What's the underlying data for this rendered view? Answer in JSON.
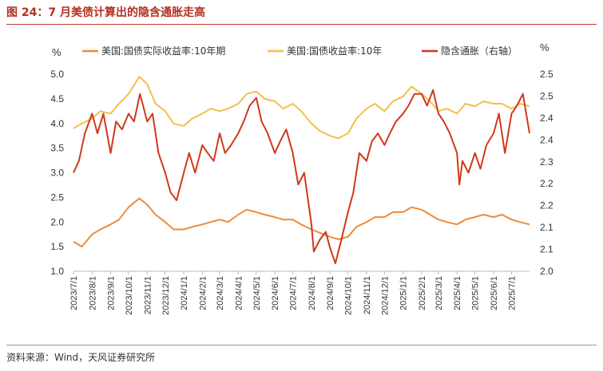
{
  "title": "图 24：7 月美债计算出的隐含通胀走高",
  "source": "资料来源：Wind，天风证券研究所",
  "chart_data": {
    "type": "line",
    "left_unit": "%",
    "right_unit": "%",
    "ylim_left": [
      1.0,
      5.0
    ],
    "yticks_left": [
      "1.0",
      "1.5",
      "2.0",
      "2.5",
      "3.0",
      "3.5",
      "4.0",
      "4.5",
      "5.0"
    ],
    "ylim_right": [
      2.0,
      2.5
    ],
    "yticks_right": [
      "2.0",
      "2.1",
      "2.1",
      "2.2",
      "2.2",
      "2.3",
      "2.4",
      "2.4",
      "2.5",
      "2.5"
    ],
    "x_categories": [
      "2023/7/1",
      "2023/8/1",
      "2023/9/1",
      "2023/10/1",
      "2023/11/1",
      "2023/12/1",
      "2024/1/1",
      "2024/2/1",
      "2024/3/1",
      "2024/4/1",
      "2024/5/1",
      "2024/6/1",
      "2024/7/1",
      "2024/8/1",
      "2024/9/1",
      "2024/10/1",
      "2024/11/1",
      "2024/12/1",
      "2025/1/1",
      "2025/2/1",
      "2025/3/1",
      "2025/4/1",
      "2025/5/1",
      "2025/6/1",
      "2025/7/1"
    ],
    "legend_position": "top",
    "series": [
      {
        "name": "美国:国债实际收益率:10年期",
        "axis": "left",
        "color": "#ed8b3a",
        "x": [
          "2023/7/1",
          "2023/7/15",
          "2023/8/1",
          "2023/8/15",
          "2023/9/1",
          "2023/9/15",
          "2023/10/1",
          "2023/10/19",
          "2023/11/1",
          "2023/11/15",
          "2023/12/1",
          "2023/12/15",
          "2024/1/1",
          "2024/1/15",
          "2024/2/1",
          "2024/2/15",
          "2024/3/1",
          "2024/3/15",
          "2024/4/1",
          "2024/4/15",
          "2024/5/1",
          "2024/5/15",
          "2024/6/1",
          "2024/6/15",
          "2024/7/1",
          "2024/7/15",
          "2024/8/1",
          "2024/8/15",
          "2024/9/1",
          "2024/9/15",
          "2024/10/1",
          "2024/10/15",
          "2024/11/1",
          "2024/11/15",
          "2024/12/1",
          "2024/12/15",
          "2025/1/1",
          "2025/1/15",
          "2025/2/1",
          "2025/2/15",
          "2025/3/1",
          "2025/3/15",
          "2025/4/1",
          "2025/4/15",
          "2025/5/1",
          "2025/5/15",
          "2025/6/1",
          "2025/6/15",
          "2025/7/1",
          "2025/7/15",
          "2025/7/31"
        ],
        "values": [
          1.6,
          1.5,
          1.75,
          1.85,
          1.95,
          2.05,
          2.3,
          2.48,
          2.35,
          2.15,
          2.0,
          1.85,
          1.85,
          1.9,
          1.95,
          2.0,
          2.05,
          2.0,
          2.15,
          2.25,
          2.2,
          2.15,
          2.1,
          2.05,
          2.05,
          1.95,
          1.85,
          1.78,
          1.7,
          1.65,
          1.7,
          1.9,
          2.0,
          2.1,
          2.1,
          2.2,
          2.2,
          2.3,
          2.25,
          2.15,
          2.05,
          2.0,
          1.95,
          2.05,
          2.1,
          2.15,
          2.1,
          2.15,
          2.05,
          2.0,
          1.95
        ]
      },
      {
        "name": "美国:国债收益率:10年",
        "axis": "left",
        "color": "#f3c04a",
        "x": [
          "2023/7/1",
          "2023/7/15",
          "2023/8/1",
          "2023/8/15",
          "2023/9/1",
          "2023/9/15",
          "2023/10/1",
          "2023/10/19",
          "2023/11/1",
          "2023/11/15",
          "2023/12/1",
          "2023/12/15",
          "2024/1/1",
          "2024/1/15",
          "2024/2/1",
          "2024/2/15",
          "2024/3/1",
          "2024/3/15",
          "2024/4/1",
          "2024/4/15",
          "2024/5/1",
          "2024/5/15",
          "2024/6/1",
          "2024/6/15",
          "2024/7/1",
          "2024/7/15",
          "2024/8/1",
          "2024/8/15",
          "2024/9/1",
          "2024/9/15",
          "2024/10/1",
          "2024/10/15",
          "2024/11/1",
          "2024/11/15",
          "2024/12/1",
          "2024/12/15",
          "2025/1/1",
          "2025/1/15",
          "2025/2/1",
          "2025/2/15",
          "2025/3/1",
          "2025/3/15",
          "2025/4/1",
          "2025/4/15",
          "2025/5/1",
          "2025/5/15",
          "2025/6/1",
          "2025/6/15",
          "2025/7/1",
          "2025/7/15",
          "2025/7/31"
        ],
        "values": [
          3.9,
          4.0,
          4.1,
          4.25,
          4.2,
          4.4,
          4.6,
          4.95,
          4.8,
          4.4,
          4.25,
          4.0,
          3.95,
          4.1,
          4.2,
          4.3,
          4.25,
          4.3,
          4.4,
          4.6,
          4.65,
          4.5,
          4.45,
          4.3,
          4.4,
          4.25,
          4.0,
          3.85,
          3.75,
          3.7,
          3.8,
          4.1,
          4.3,
          4.4,
          4.25,
          4.45,
          4.55,
          4.75,
          4.6,
          4.45,
          4.25,
          4.3,
          4.2,
          4.4,
          4.35,
          4.45,
          4.4,
          4.4,
          4.3,
          4.4,
          4.35
        ]
      },
      {
        "name": "隐含通胀（右轴）",
        "axis": "right",
        "color": "#d0391a",
        "x": [
          "2023/7/1",
          "2023/7/10",
          "2023/7/20",
          "2023/8/1",
          "2023/8/10",
          "2023/8/20",
          "2023/9/1",
          "2023/9/10",
          "2023/9/20",
          "2023/10/1",
          "2023/10/10",
          "2023/10/20",
          "2023/11/1",
          "2023/11/10",
          "2023/11/20",
          "2023/12/1",
          "2023/12/10",
          "2023/12/20",
          "2024/1/1",
          "2024/1/10",
          "2024/1/20",
          "2024/2/1",
          "2024/2/10",
          "2024/2/20",
          "2024/3/1",
          "2024/3/10",
          "2024/3/20",
          "2024/4/1",
          "2024/4/10",
          "2024/4/20",
          "2024/5/1",
          "2024/5/10",
          "2024/5/20",
          "2024/6/1",
          "2024/6/10",
          "2024/6/20",
          "2024/7/1",
          "2024/7/10",
          "2024/7/20",
          "2024/8/1",
          "2024/8/5",
          "2024/8/15",
          "2024/8/25",
          "2024/9/1",
          "2024/9/10",
          "2024/9/20",
          "2024/10/1",
          "2024/10/10",
          "2024/10/20",
          "2024/11/1",
          "2024/11/10",
          "2024/11/20",
          "2024/12/1",
          "2024/12/10",
          "2024/12/20",
          "2025/1/1",
          "2025/1/10",
          "2025/1/20",
          "2025/2/1",
          "2025/2/10",
          "2025/2/20",
          "2025/3/1",
          "2025/3/10",
          "2025/3/20",
          "2025/4/1",
          "2025/4/5",
          "2025/4/10",
          "2025/4/20",
          "2025/5/1",
          "2025/5/10",
          "2025/5/20",
          "2025/6/1",
          "2025/6/10",
          "2025/6/20",
          "2025/7/1",
          "2025/7/10",
          "2025/7/20",
          "2025/7/31"
        ],
        "values": [
          2.25,
          2.28,
          2.35,
          2.4,
          2.35,
          2.4,
          2.3,
          2.38,
          2.36,
          2.4,
          2.38,
          2.45,
          2.38,
          2.4,
          2.3,
          2.25,
          2.2,
          2.18,
          2.25,
          2.3,
          2.25,
          2.32,
          2.3,
          2.28,
          2.35,
          2.3,
          2.32,
          2.35,
          2.38,
          2.42,
          2.44,
          2.38,
          2.35,
          2.3,
          2.33,
          2.36,
          2.3,
          2.22,
          2.25,
          2.12,
          2.05,
          2.08,
          2.1,
          2.06,
          2.02,
          2.08,
          2.15,
          2.2,
          2.3,
          2.28,
          2.33,
          2.35,
          2.32,
          2.35,
          2.38,
          2.4,
          2.42,
          2.45,
          2.45,
          2.42,
          2.46,
          2.4,
          2.38,
          2.35,
          2.3,
          2.22,
          2.28,
          2.25,
          2.3,
          2.26,
          2.32,
          2.35,
          2.4,
          2.3,
          2.4,
          2.42,
          2.45,
          2.35
        ]
      }
    ]
  }
}
